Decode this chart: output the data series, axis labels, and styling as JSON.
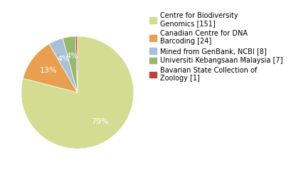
{
  "labels": [
    "Centre for Biodiversity\nGenomics [151]",
    "Canadian Centre for DNA\nBarcoding [24]",
    "Mined from GenBank, NCBI [8]",
    "Universiti Kebangsaan Malaysia [7]",
    "Bavarian State Collection of\nZoology [1]"
  ],
  "values": [
    151,
    24,
    8,
    7,
    1
  ],
  "colors": [
    "#d4dc91",
    "#e8a050",
    "#a8c0d8",
    "#98b870",
    "#c04040"
  ],
  "background_color": "#ffffff",
  "startangle": 90,
  "legend_fontsize": 7.0,
  "autopct_fontsize": 8
}
